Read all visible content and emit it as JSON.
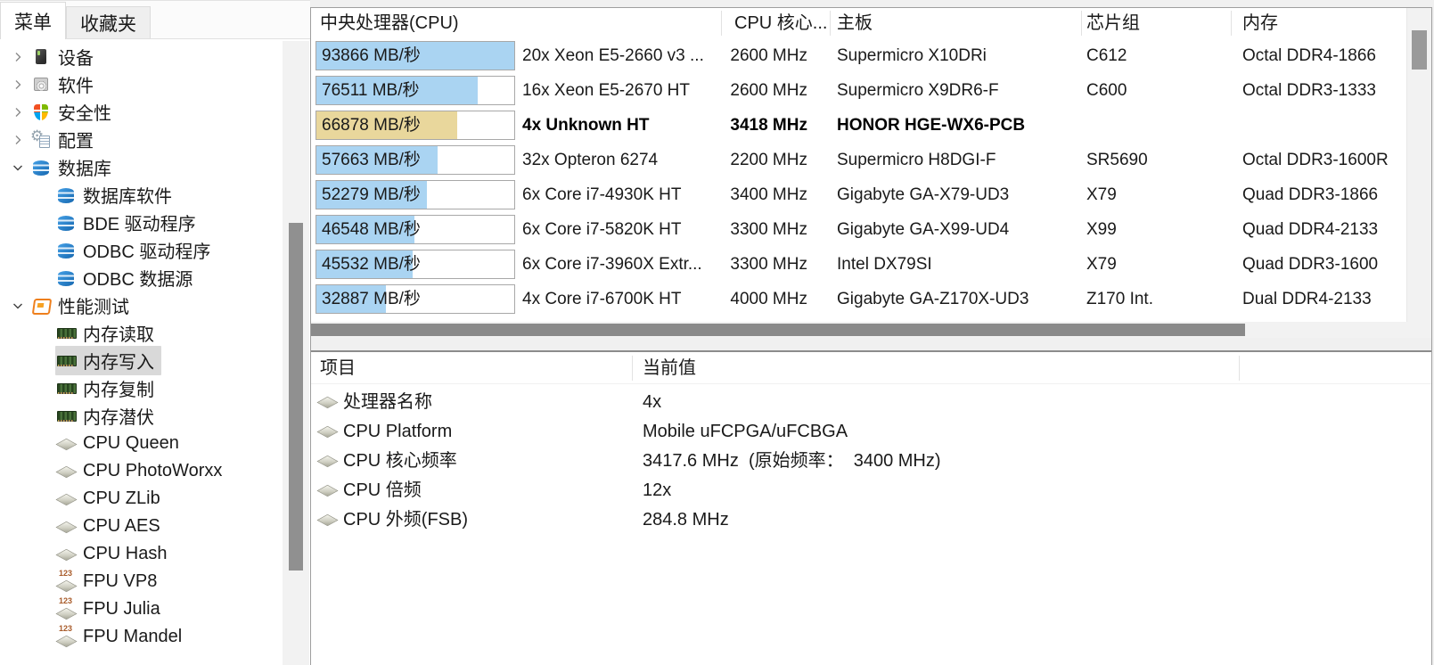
{
  "sidebar": {
    "tabs": [
      {
        "label": "菜单",
        "active": true
      },
      {
        "label": "收藏夹",
        "active": false
      }
    ],
    "tree": [
      {
        "label": "设备",
        "depth": 0,
        "state": "collapsed",
        "icon": "device"
      },
      {
        "label": "软件",
        "depth": 0,
        "state": "collapsed",
        "icon": "software"
      },
      {
        "label": "安全性",
        "depth": 0,
        "state": "collapsed",
        "icon": "security"
      },
      {
        "label": "配置",
        "depth": 0,
        "state": "collapsed",
        "icon": "config"
      },
      {
        "label": "数据库",
        "depth": 0,
        "state": "expanded",
        "icon": "database"
      },
      {
        "label": "数据库软件",
        "depth": 1,
        "state": null,
        "icon": "database"
      },
      {
        "label": "BDE 驱动程序",
        "depth": 1,
        "state": null,
        "icon": "database"
      },
      {
        "label": "ODBC 驱动程序",
        "depth": 1,
        "state": null,
        "icon": "database"
      },
      {
        "label": "ODBC 数据源",
        "depth": 1,
        "state": null,
        "icon": "database"
      },
      {
        "label": "性能测试",
        "depth": 0,
        "state": "expanded",
        "icon": "benchmark"
      },
      {
        "label": "内存读取",
        "depth": 1,
        "state": null,
        "icon": "ram"
      },
      {
        "label": "内存写入",
        "depth": 1,
        "state": null,
        "icon": "ram",
        "selected": true
      },
      {
        "label": "内存复制",
        "depth": 1,
        "state": null,
        "icon": "ram"
      },
      {
        "label": "内存潜伏",
        "depth": 1,
        "state": null,
        "icon": "ram"
      },
      {
        "label": "CPU Queen",
        "depth": 1,
        "state": null,
        "icon": "cpu"
      },
      {
        "label": "CPU PhotoWorxx",
        "depth": 1,
        "state": null,
        "icon": "cpu"
      },
      {
        "label": "CPU ZLib",
        "depth": 1,
        "state": null,
        "icon": "cpu"
      },
      {
        "label": "CPU AES",
        "depth": 1,
        "state": null,
        "icon": "cpu"
      },
      {
        "label": "CPU Hash",
        "depth": 1,
        "state": null,
        "icon": "cpu"
      },
      {
        "label": "FPU VP8",
        "depth": 1,
        "state": null,
        "icon": "fpu"
      },
      {
        "label": "FPU Julia",
        "depth": 1,
        "state": null,
        "icon": "fpu"
      },
      {
        "label": "FPU Mandel",
        "depth": 1,
        "state": null,
        "icon": "fpu"
      }
    ]
  },
  "benchmark_table": {
    "columns": [
      "中央处理器(CPU)",
      "CPU 核心...",
      "主板",
      "芯片组",
      "内存"
    ],
    "unit": "MB/秒",
    "max_value": 93866,
    "rows": [
      {
        "value": 93866,
        "score_label": "93866 MB/秒",
        "cpu": "20x Xeon E5-2660 v3 ...",
        "clock": "2600 MHz",
        "motherboard": "Supermicro X10DRi",
        "chipset": "C612",
        "memory": "Octal DDR4-1866",
        "highlight": false
      },
      {
        "value": 76511,
        "score_label": "76511 MB/秒",
        "cpu": "16x Xeon E5-2670 HT",
        "clock": "2600 MHz",
        "motherboard": "Supermicro X9DR6-F",
        "chipset": "C600",
        "memory": "Octal DDR3-1333",
        "highlight": false
      },
      {
        "value": 66878,
        "score_label": "66878 MB/秒",
        "cpu": "4x Unknown HT",
        "clock": "3418 MHz",
        "motherboard": "HONOR HGE-WX6-PCB",
        "chipset": "",
        "memory": "",
        "highlight": true
      },
      {
        "value": 57663,
        "score_label": "57663 MB/秒",
        "cpu": "32x Opteron 6274",
        "clock": "2200 MHz",
        "motherboard": "Supermicro H8DGI-F",
        "chipset": "SR5690",
        "memory": "Octal DDR3-1600R",
        "highlight": false
      },
      {
        "value": 52279,
        "score_label": "52279 MB/秒",
        "cpu": "6x Core i7-4930K HT",
        "clock": "3400 MHz",
        "motherboard": "Gigabyte GA-X79-UD3",
        "chipset": "X79",
        "memory": "Quad DDR3-1866",
        "highlight": false
      },
      {
        "value": 46548,
        "score_label": "46548 MB/秒",
        "cpu": "6x Core i7-5820K HT",
        "clock": "3300 MHz",
        "motherboard": "Gigabyte GA-X99-UD4",
        "chipset": "X99",
        "memory": "Quad DDR4-2133",
        "highlight": false
      },
      {
        "value": 45532,
        "score_label": "45532 MB/秒",
        "cpu": "6x Core i7-3960X Extr...",
        "clock": "3300 MHz",
        "motherboard": "Intel DX79SI",
        "chipset": "X79",
        "memory": "Quad DDR3-1600",
        "highlight": false
      },
      {
        "value": 32887,
        "score_label": "32887 MB/秒",
        "cpu": "4x Core i7-6700K HT",
        "clock": "4000 MHz",
        "motherboard": "Gigabyte GA-Z170X-UD3",
        "chipset": "Z170 Int.",
        "memory": "Dual DDR4-2133",
        "highlight": false
      }
    ]
  },
  "details_table": {
    "columns": [
      "项目",
      "当前值"
    ],
    "rows": [
      {
        "label": "处理器名称",
        "value": "4x"
      },
      {
        "label": "CPU Platform",
        "value": "Mobile uFCPGA/uFCBGA"
      },
      {
        "label": "CPU 核心频率",
        "value": "3417.6 MHz  (原始频率：  3400 MHz)"
      },
      {
        "label": "CPU 倍频",
        "value": "12x"
      },
      {
        "label": "CPU 外频(FSB)",
        "value": "284.8 MHz"
      }
    ]
  },
  "colors": {
    "bar_fill_blue": "#aad4f2",
    "bar_fill_yellow": "#e9d79c",
    "selected_item_bg": "#d9d9d9",
    "benchmark_icon_orange": "#ee7f1d",
    "database_icon_blue": "#1e78c8"
  }
}
